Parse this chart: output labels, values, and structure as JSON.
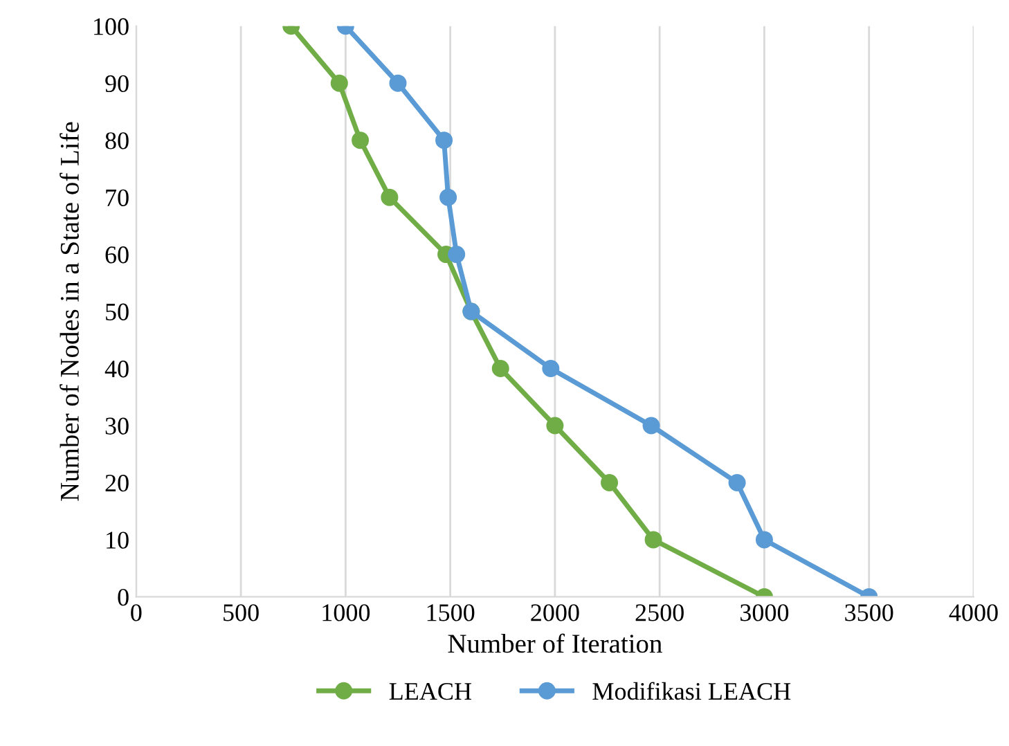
{
  "chart_data": {
    "type": "line",
    "xlabel": "Number of Iteration",
    "ylabel": "Number of Nodes in a State of Life",
    "xlim": [
      0,
      4000
    ],
    "xticks": [
      0,
      500,
      1000,
      1500,
      2000,
      2500,
      3000,
      3500,
      4000
    ],
    "ylim": [
      0,
      100
    ],
    "yticks": [
      0,
      10,
      20,
      30,
      40,
      50,
      60,
      70,
      80,
      90,
      100
    ],
    "grid": "x",
    "legend": "bottom",
    "marker": "circle",
    "line_style": "solid",
    "series": [
      {
        "name": "LEACH",
        "color": "#70ad47",
        "x": [
          740,
          970,
          1070,
          1210,
          1480,
          1600,
          1740,
          2000,
          2260,
          2470,
          3000
        ],
        "values": [
          100,
          90,
          80,
          70,
          60,
          50,
          40,
          30,
          20,
          10,
          0
        ]
      },
      {
        "name": "Modifikasi LEACH",
        "color": "#5b9bd5",
        "x": [
          1000,
          1250,
          1470,
          1490,
          1530,
          1600,
          1980,
          2460,
          2870,
          3000,
          3500
        ],
        "values": [
          100,
          90,
          80,
          70,
          60,
          50,
          40,
          30,
          20,
          10,
          0
        ]
      }
    ]
  }
}
